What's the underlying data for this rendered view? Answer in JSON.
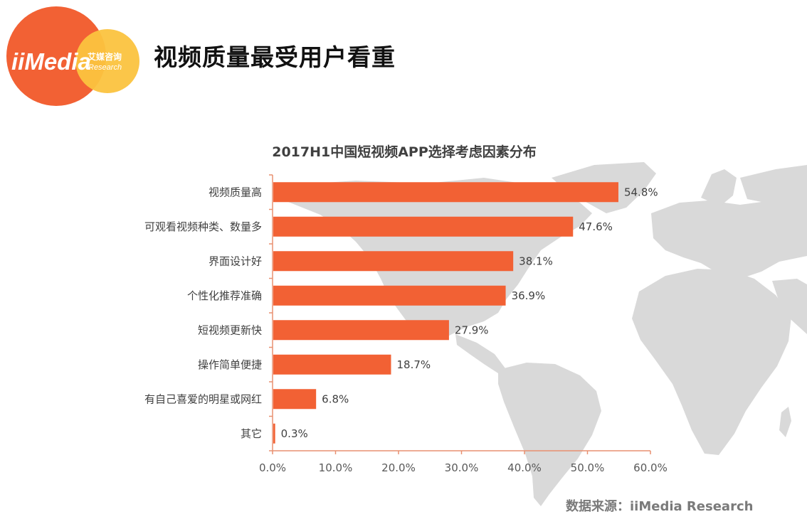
{
  "header": {
    "logo_text": "iiMedia",
    "logo_cn": "艾媒咨询",
    "logo_sub": "Research",
    "title": "视频质量最受用户看重"
  },
  "colors": {
    "bar": "#F26134",
    "logo_orange": "#F26134",
    "logo_yellow": "#FBC33F",
    "map": "#D9D9D9"
  },
  "chart_data": {
    "type": "bar",
    "orientation": "horizontal",
    "title": "2017H1中国短视频APP选择考虑因素分布",
    "categories": [
      "视频质量高",
      "可观看视频种类、数量多",
      "界面设计好",
      "个性化推荐准确",
      "短视频更新快",
      "操作简单便捷",
      "有自己喜爱的明星或网红",
      "其它"
    ],
    "values": [
      54.8,
      47.6,
      38.1,
      36.9,
      27.9,
      18.7,
      6.8,
      0.3
    ],
    "value_labels": [
      "54.8%",
      "47.6%",
      "38.1%",
      "36.9%",
      "27.9%",
      "18.7%",
      "6.8%",
      "0.3%"
    ],
    "xlim": [
      0,
      60
    ],
    "xticks": [
      "0.0%",
      "10.0%",
      "20.0%",
      "30.0%",
      "40.0%",
      "50.0%",
      "60.0%"
    ],
    "xlabel": "",
    "ylabel": "",
    "grid": false,
    "legend": "none"
  },
  "footer": {
    "source": "数据来源：iiMedia Research"
  }
}
